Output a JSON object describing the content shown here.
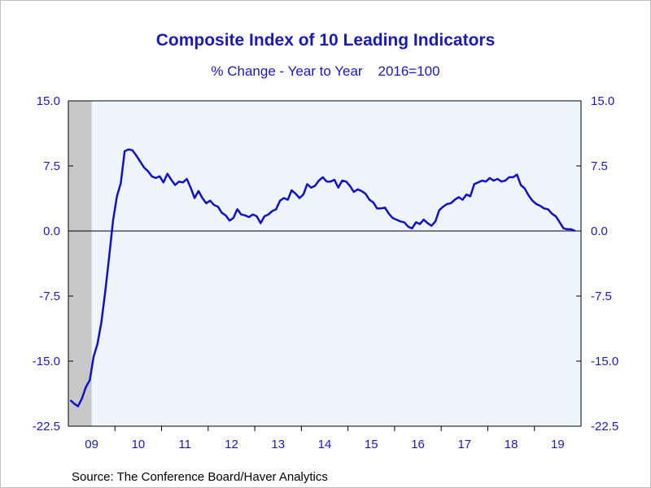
{
  "chart_data": {
    "type": "line",
    "title": "Composite Index of 10 Leading Indicators",
    "subtitle": "% Change - Year to Year    2016=100",
    "source": "Source:  The Conference Board/Haver Analytics",
    "ylim": [
      -22.5,
      15.0
    ],
    "yticks": [
      "15.0",
      "7.5",
      "0.0",
      "-7.5",
      "-15.0",
      "-22.5"
    ],
    "ytick_values": [
      15.0,
      7.5,
      0.0,
      -7.5,
      -15.0,
      -22.5
    ],
    "xticks": [
      "09",
      "10",
      "11",
      "12",
      "13",
      "14",
      "15",
      "16",
      "17",
      "18",
      "19"
    ],
    "xlim": [
      "2009-01",
      "2019-12"
    ],
    "recession_shading": {
      "start": "2009-01",
      "end": "2009-06"
    },
    "zero_line": true,
    "colors": {
      "line": "#1010c8",
      "text": "#1a1ab4",
      "plot_bg": "#eef5ff",
      "recession": "#c8c8c8"
    },
    "series": [
      {
        "x": [
          "2009-01",
          "2009-02",
          "2009-03",
          "2009-04",
          "2009-05",
          "2009-06",
          "2009-07",
          "2009-08",
          "2009-09",
          "2009-10",
          "2009-11",
          "2009-12",
          "2010-01",
          "2010-02",
          "2010-03",
          "2010-04",
          "2010-05",
          "2010-06",
          "2010-07",
          "2010-08",
          "2010-09",
          "2010-10",
          "2010-11",
          "2010-12",
          "2011-01",
          "2011-02",
          "2011-03",
          "2011-04",
          "2011-05",
          "2011-06",
          "2011-07",
          "2011-08",
          "2011-09",
          "2011-10",
          "2011-11",
          "2011-12",
          "2012-01",
          "2012-02",
          "2012-03",
          "2012-04",
          "2012-05",
          "2012-06",
          "2012-07",
          "2012-08",
          "2012-09",
          "2012-10",
          "2012-11",
          "2012-12",
          "2013-01",
          "2013-02",
          "2013-03",
          "2013-04",
          "2013-05",
          "2013-06",
          "2013-07",
          "2013-08",
          "2013-09",
          "2013-10",
          "2013-11",
          "2013-12",
          "2014-01",
          "2014-02",
          "2014-03",
          "2014-04",
          "2014-05",
          "2014-06",
          "2014-07",
          "2014-08",
          "2014-09",
          "2014-10",
          "2014-11",
          "2014-12",
          "2015-01",
          "2015-02",
          "2015-03",
          "2015-04",
          "2015-05",
          "2015-06",
          "2015-07",
          "2015-08",
          "2015-09",
          "2015-10",
          "2015-11",
          "2015-12",
          "2016-01",
          "2016-02",
          "2016-03",
          "2016-04",
          "2016-05",
          "2016-06",
          "2016-07",
          "2016-08",
          "2016-09",
          "2016-10",
          "2016-11",
          "2016-12",
          "2017-01",
          "2017-02",
          "2017-03",
          "2017-04",
          "2017-05",
          "2017-06",
          "2017-07",
          "2017-08",
          "2017-09",
          "2017-10",
          "2017-11",
          "2017-12",
          "2018-01",
          "2018-02",
          "2018-03",
          "2018-04",
          "2018-05",
          "2018-06",
          "2018-07",
          "2018-08",
          "2018-09",
          "2018-10",
          "2018-11",
          "2018-12",
          "2019-01",
          "2019-02",
          "2019-03",
          "2019-04",
          "2019-05",
          "2019-06",
          "2019-07",
          "2019-08",
          "2019-09",
          "2019-10",
          "2019-11"
        ],
        "values": [
          -19.5,
          -19.9,
          -20.2,
          -19.3,
          -18.0,
          -17.2,
          -14.5,
          -13.0,
          -10.5,
          -7.0,
          -3.0,
          1.2,
          4.0,
          5.5,
          9.2,
          9.4,
          9.3,
          8.7,
          8.0,
          7.3,
          6.9,
          6.3,
          6.1,
          6.3,
          5.6,
          6.6,
          5.9,
          5.3,
          5.7,
          5.6,
          6.0,
          5.0,
          3.8,
          4.6,
          3.8,
          3.2,
          3.5,
          3.0,
          2.8,
          2.1,
          1.8,
          1.2,
          1.5,
          2.5,
          1.9,
          1.8,
          1.6,
          1.9,
          1.7,
          0.9,
          1.7,
          1.9,
          2.3,
          2.5,
          3.5,
          3.8,
          3.6,
          4.7,
          4.3,
          3.8,
          4.2,
          5.4,
          5.0,
          5.2,
          5.8,
          6.2,
          5.7,
          5.7,
          5.9,
          5.0,
          5.8,
          5.7,
          5.2,
          4.5,
          4.8,
          4.6,
          4.3,
          3.6,
          3.3,
          2.6,
          2.6,
          2.7,
          2.0,
          1.5,
          1.3,
          1.1,
          1.0,
          0.5,
          0.3,
          1.0,
          0.8,
          1.3,
          0.9,
          0.6,
          1.1,
          2.4,
          2.8,
          3.1,
          3.2,
          3.6,
          3.9,
          3.6,
          4.2,
          4.0,
          5.4,
          5.6,
          5.8,
          5.7,
          6.1,
          5.8,
          6.0,
          5.7,
          5.8,
          6.2,
          6.2,
          6.5,
          5.3,
          4.9,
          4.1,
          3.5,
          3.1,
          2.9,
          2.6,
          2.5,
          2.0,
          1.7,
          1.0,
          0.3,
          0.2,
          0.2,
          0.0
        ]
      }
    ]
  }
}
